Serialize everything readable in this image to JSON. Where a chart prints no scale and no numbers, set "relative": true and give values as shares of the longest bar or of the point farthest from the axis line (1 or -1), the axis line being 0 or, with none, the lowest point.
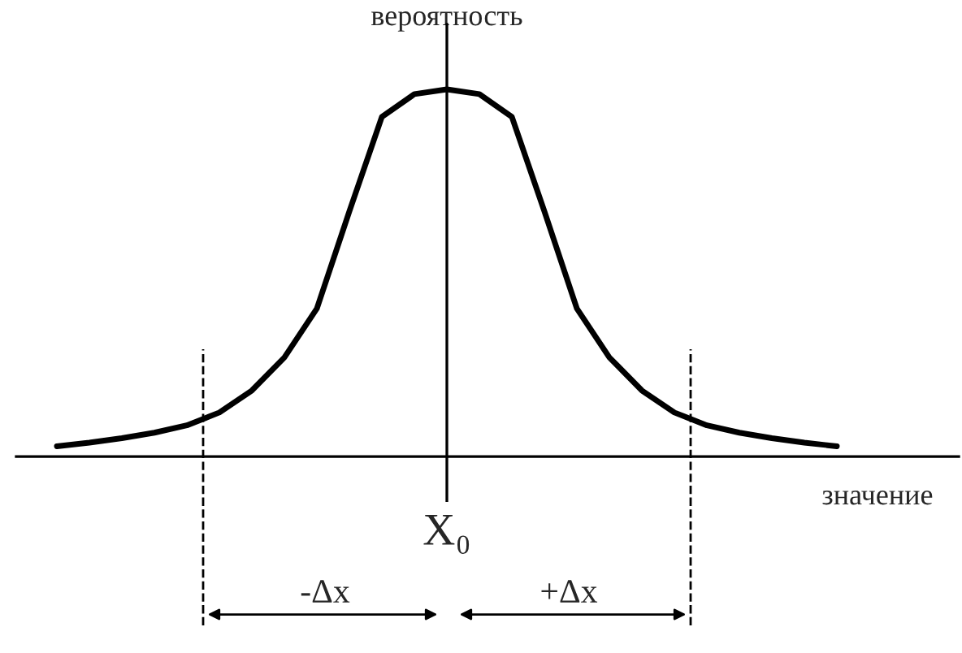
{
  "chart_data": {
    "type": "line",
    "relative": true,
    "xlabel": "значение",
    "ylabel": "вероятность",
    "categories": [
      null,
      null,
      null,
      null,
      null,
      null,
      null,
      null,
      null,
      null,
      null,
      null,
      null,
      null,
      null,
      null,
      null,
      null,
      null,
      null,
      null,
      null,
      null,
      null,
      null
    ],
    "series": [
      {
        "color": "#000000",
        "values": [
          0.028,
          0.038,
          0.05,
          0.065,
          0.085,
          0.12,
          0.18,
          0.27,
          0.403,
          0.668,
          0.925,
          0.987,
          1.0,
          0.987,
          0.925,
          0.668,
          0.403,
          0.27,
          0.18,
          0.12,
          0.085,
          0.065,
          0.05,
          0.038,
          0.028
        ]
      }
    ],
    "annotations": [
      "X₀",
      "-Δx",
      "+Δx"
    ],
    "marker": "none",
    "line_style": "solid"
  }
}
